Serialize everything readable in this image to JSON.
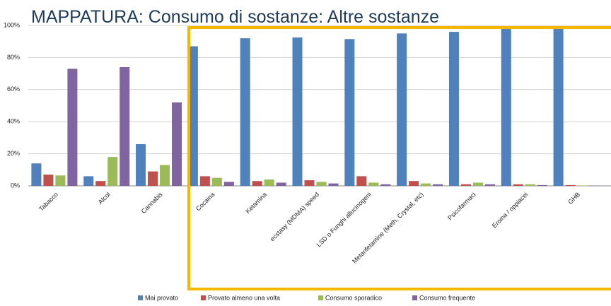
{
  "chart_data": {
    "type": "bar",
    "title": "MAPPATURA: Consumo di sostanze: Altre sostanze",
    "categories": [
      "Tabacco",
      "Alcol",
      "Cannabis",
      "Cocaina",
      "Ketamina",
      "ecstasy (MDMA) speed",
      "LSD o Funghi allucinogeni",
      "Metanfetamine (Meth, Crystal, etc)",
      "Psicofarmaci",
      "Eroina / oppiacei",
      "GHB"
    ],
    "series": [
      {
        "name": "Mai provato",
        "color": "#4f81bd",
        "values": [
          14,
          6,
          26,
          87,
          92,
          92.5,
          91.5,
          95,
          96,
          98,
          99.5
        ]
      },
      {
        "name": "Provato almeno una volta",
        "color": "#c0504d",
        "values": [
          7,
          3,
          9,
          6,
          3,
          3.5,
          6,
          3,
          1,
          1,
          0.5
        ]
      },
      {
        "name": "Consumo sporadico",
        "color": "#9bbb59",
        "values": [
          6.5,
          18,
          13,
          5,
          4,
          2.5,
          2,
          1.5,
          2,
          1,
          0.2
        ]
      },
      {
        "name": "Consumo frequente",
        "color": "#8064a2",
        "values": [
          73,
          74,
          52,
          2.5,
          2,
          1.5,
          1,
          1,
          1,
          0.5,
          0.2
        ]
      }
    ],
    "ylim": [
      0,
      100
    ],
    "yticks": [
      {
        "value": 0,
        "label": "0%"
      },
      {
        "value": 20,
        "label": "20%"
      },
      {
        "value": 40,
        "label": "40%"
      },
      {
        "value": 60,
        "label": "60%"
      },
      {
        "value": 80,
        "label": "80%"
      },
      {
        "value": 100,
        "label": "100%"
      }
    ],
    "grid": true
  }
}
